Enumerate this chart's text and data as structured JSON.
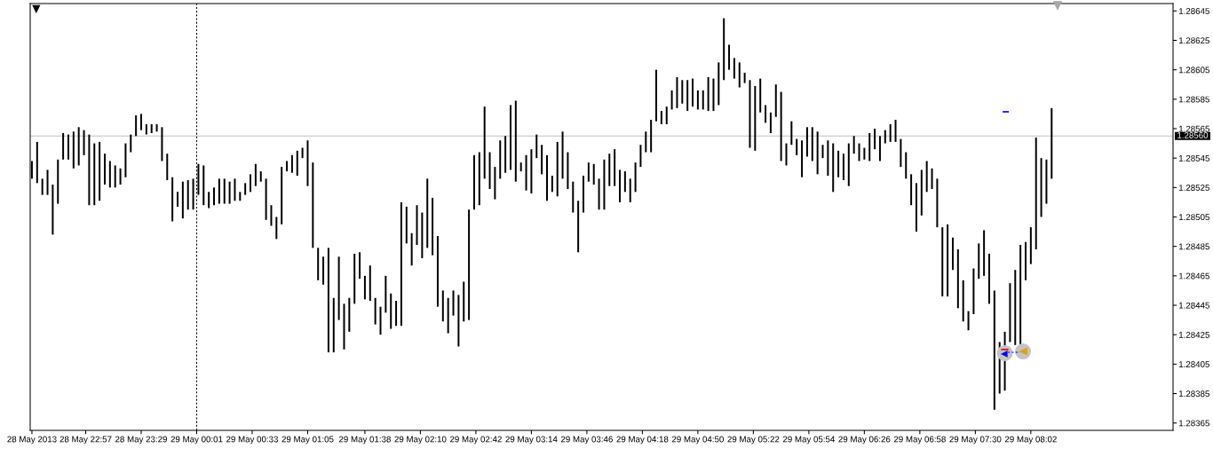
{
  "chart_data": {
    "type": "bar",
    "color": "#000000",
    "x": [
      "2013-05-28T22:26",
      "2013-05-28T22:29",
      "2013-05-28T22:32",
      "2013-05-28T22:35",
      "2013-05-28T22:38",
      "2013-05-28T22:41",
      "2013-05-28T22:44",
      "2013-05-28T22:47",
      "2013-05-28T22:50",
      "2013-05-28T22:53",
      "2013-05-28T22:56",
      "2013-05-28T22:59",
      "2013-05-28T23:02",
      "2013-05-28T23:05",
      "2013-05-28T23:08",
      "2013-05-28T23:11",
      "2013-05-28T23:14",
      "2013-05-28T23:17",
      "2013-05-28T23:20",
      "2013-05-28T23:23",
      "2013-05-28T23:26",
      "2013-05-28T23:29",
      "2013-05-28T23:32",
      "2013-05-28T23:35",
      "2013-05-28T23:38",
      "2013-05-28T23:41",
      "2013-05-28T23:44",
      "2013-05-28T23:47",
      "2013-05-28T23:50",
      "2013-05-28T23:53",
      "2013-05-28T23:56",
      "2013-05-28T23:59",
      "2013-05-29T00:02",
      "2013-05-29T00:05",
      "2013-05-29T00:08",
      "2013-05-29T00:11",
      "2013-05-29T00:14",
      "2013-05-29T00:17",
      "2013-05-29T00:20",
      "2013-05-29T00:23",
      "2013-05-29T00:26",
      "2013-05-29T00:29",
      "2013-05-29T00:32",
      "2013-05-29T00:35",
      "2013-05-29T00:38",
      "2013-05-29T00:41",
      "2013-05-29T00:44",
      "2013-05-29T00:47",
      "2013-05-29T00:50",
      "2013-05-29T00:53",
      "2013-05-29T00:56",
      "2013-05-29T00:59",
      "2013-05-29T01:02",
      "2013-05-29T01:05",
      "2013-05-29T01:08",
      "2013-05-29T01:11",
      "2013-05-29T01:14",
      "2013-05-29T01:17",
      "2013-05-29T01:20",
      "2013-05-29T01:23",
      "2013-05-29T01:26",
      "2013-05-29T01:29",
      "2013-05-29T01:32",
      "2013-05-29T01:35",
      "2013-05-29T01:38",
      "2013-05-29T01:41",
      "2013-05-29T01:44",
      "2013-05-29T01:47",
      "2013-05-29T01:50",
      "2013-05-29T01:53",
      "2013-05-29T01:56",
      "2013-05-29T01:59",
      "2013-05-29T02:02",
      "2013-05-29T02:05",
      "2013-05-29T02:08",
      "2013-05-29T02:11",
      "2013-05-29T02:14",
      "2013-05-29T02:17",
      "2013-05-29T02:20",
      "2013-05-29T02:23",
      "2013-05-29T02:26",
      "2013-05-29T02:29",
      "2013-05-29T02:32",
      "2013-05-29T02:35",
      "2013-05-29T02:38",
      "2013-05-29T02:41",
      "2013-05-29T02:44",
      "2013-05-29T02:47",
      "2013-05-29T02:50",
      "2013-05-29T02:53",
      "2013-05-29T02:56",
      "2013-05-29T02:59",
      "2013-05-29T03:02",
      "2013-05-29T03:05",
      "2013-05-29T03:08",
      "2013-05-29T03:11",
      "2013-05-29T03:14",
      "2013-05-29T03:17",
      "2013-05-29T03:20",
      "2013-05-29T03:23",
      "2013-05-29T03:26",
      "2013-05-29T03:29",
      "2013-05-29T03:32",
      "2013-05-29T03:35",
      "2013-05-29T03:38",
      "2013-05-29T03:41",
      "2013-05-29T03:44",
      "2013-05-29T03:47",
      "2013-05-29T03:50",
      "2013-05-29T03:53",
      "2013-05-29T03:56",
      "2013-05-29T03:59",
      "2013-05-29T04:02",
      "2013-05-29T04:05",
      "2013-05-29T04:08",
      "2013-05-29T04:11",
      "2013-05-29T04:14",
      "2013-05-29T04:17",
      "2013-05-29T04:20",
      "2013-05-29T04:23",
      "2013-05-29T04:26",
      "2013-05-29T04:29",
      "2013-05-29T04:32",
      "2013-05-29T04:35",
      "2013-05-29T04:38",
      "2013-05-29T04:41",
      "2013-05-29T04:44",
      "2013-05-29T04:47",
      "2013-05-29T04:50",
      "2013-05-29T04:53",
      "2013-05-29T04:56",
      "2013-05-29T04:59",
      "2013-05-29T05:02",
      "2013-05-29T05:05",
      "2013-05-29T05:08",
      "2013-05-29T05:11",
      "2013-05-29T05:14",
      "2013-05-29T05:17",
      "2013-05-29T05:20",
      "2013-05-29T05:23",
      "2013-05-29T05:26",
      "2013-05-29T05:29",
      "2013-05-29T05:32",
      "2013-05-29T05:35",
      "2013-05-29T05:38",
      "2013-05-29T05:41",
      "2013-05-29T05:44",
      "2013-05-29T05:47",
      "2013-05-29T05:50",
      "2013-05-29T05:53",
      "2013-05-29T05:56",
      "2013-05-29T05:59",
      "2013-05-29T06:02",
      "2013-05-29T06:05",
      "2013-05-29T06:08",
      "2013-05-29T06:11",
      "2013-05-29T06:14",
      "2013-05-29T06:17",
      "2013-05-29T06:20",
      "2013-05-29T06:23",
      "2013-05-29T06:26",
      "2013-05-29T06:29",
      "2013-05-29T06:32",
      "2013-05-29T06:35",
      "2013-05-29T06:38",
      "2013-05-29T06:41",
      "2013-05-29T06:44",
      "2013-05-29T06:47",
      "2013-05-29T06:50",
      "2013-05-29T06:53",
      "2013-05-29T06:56",
      "2013-05-29T06:59",
      "2013-05-29T07:02",
      "2013-05-29T07:05",
      "2013-05-29T07:08",
      "2013-05-29T07:11",
      "2013-05-29T07:14",
      "2013-05-29T07:17",
      "2013-05-29T07:20",
      "2013-05-29T07:23",
      "2013-05-29T07:26",
      "2013-05-29T07:29",
      "2013-05-29T07:32",
      "2013-05-29T07:35",
      "2013-05-29T07:38",
      "2013-05-29T07:41",
      "2013-05-29T07:44",
      "2013-05-29T07:47",
      "2013-05-29T07:50",
      "2013-05-29T07:53",
      "2013-05-29T07:56",
      "2013-05-29T07:59",
      "2013-05-29T08:02",
      "2013-05-29T08:05",
      "2013-05-29T08:08",
      "2013-05-29T08:11",
      "2013-05-29T08:14"
    ],
    "base": [
      1.28531,
      1.28528,
      1.2852,
      1.2852,
      1.28493,
      1.28514,
      1.28544,
      1.28544,
      1.28538,
      1.2854,
      1.28547,
      1.28513,
      1.28513,
      1.28516,
      1.28527,
      1.28525,
      1.28525,
      1.28527,
      1.28532,
      1.28549,
      1.2856,
      1.28564,
      1.28561,
      1.28562,
      1.28563,
      1.28543,
      1.2853,
      1.28502,
      1.28512,
      1.28504,
      1.2851,
      1.2851,
      1.2852,
      1.28513,
      1.28511,
      1.28513,
      1.28514,
      1.28514,
      1.28514,
      1.28516,
      1.28516,
      1.2852,
      1.28522,
      1.28526,
      1.28529,
      1.28503,
      1.28499,
      1.2849,
      1.285,
      1.28536,
      1.28535,
      1.28533,
      1.28545,
      1.28526,
      1.28484,
      1.28462,
      1.28459,
      1.28413,
      1.28413,
      1.28435,
      1.28415,
      1.28427,
      1.28446,
      1.28463,
      1.28449,
      1.28448,
      1.28432,
      1.28425,
      1.2844,
      1.28429,
      1.28431,
      1.28431,
      1.28487,
      1.28472,
      1.28486,
      1.28477,
      1.28484,
      1.28479,
      1.28444,
      1.28434,
      1.28426,
      1.28438,
      1.28417,
      1.28434,
      1.28435,
      1.2851,
      1.28513,
      1.28531,
      1.28524,
      1.28517,
      1.28531,
      1.28535,
      1.28537,
      1.28529,
      1.28536,
      1.28523,
      1.28521,
      1.28545,
      1.28534,
      1.28516,
      1.28522,
      1.28519,
      1.28531,
      1.28524,
      1.28508,
      1.28481,
      1.28508,
      1.28529,
      1.28527,
      1.2851,
      1.2851,
      1.28526,
      1.28526,
      1.28515,
      1.28522,
      1.28515,
      1.28522,
      1.28539,
      1.28549,
      1.28549,
      1.2857,
      1.28568,
      1.28568,
      1.28578,
      1.28579,
      1.28582,
      1.28577,
      1.2858,
      1.28578,
      1.28578,
      1.28577,
      1.28577,
      1.28581,
      1.28598,
      1.28605,
      1.28599,
      1.28593,
      1.28596,
      1.28552,
      1.2855,
      1.28576,
      1.28569,
      1.28562,
      1.28573,
      1.28543,
      1.2854,
      1.28554,
      1.28547,
      1.28532,
      1.28546,
      1.28543,
      1.28534,
      1.28545,
      1.28533,
      1.28522,
      1.28532,
      1.2853,
      1.28526,
      1.28548,
      1.28543,
      1.28544,
      1.28543,
      1.28551,
      1.28543,
      1.28555,
      1.28556,
      1.28556,
      1.28539,
      1.28531,
      1.28513,
      1.28495,
      1.28506,
      1.28522,
      1.28524,
      1.28498,
      1.28451,
      1.28451,
      1.28469,
      1.28443,
      1.28434,
      1.28428,
      1.28439,
      1.28463,
      1.28465,
      1.28446,
      1.28374,
      1.28385,
      1.28387,
      1.2842,
      1.28418,
      1.28409,
      1.28462,
      1.28473,
      1.28483,
      1.28505,
      1.28514,
      1.28531
    ],
    "values": [
      0.00012,
      0.00028,
      0.00011,
      0.00017,
      0.00034,
      0.0003,
      0.00018,
      0.00017,
      0.00025,
      0.00026,
      0.00017,
      0.00048,
      0.00042,
      0.0004,
      0.00021,
      0.00018,
      0.00015,
      0.00011,
      0.00023,
      0.00012,
      0.00014,
      0.00011,
      7e-05,
      6e-05,
      5e-05,
      0.00023,
      0.00018,
      0.0003,
      0.0001,
      0.00025,
      0.0002,
      0.00021,
      0.00021,
      0.00027,
      0.00011,
      0.00012,
      0.00017,
      0.00017,
      0.00015,
      0.00015,
      6e-05,
      8e-05,
      0.00012,
      0.00015,
      7e-05,
      0.00028,
      0.00014,
      0.00015,
      0.00039,
      7e-05,
      0.00012,
      0.00017,
      7e-05,
      0.00031,
      0.00058,
      0.00022,
      0.00019,
      0.00071,
      0.00037,
      0.00043,
      0.00031,
      0.00023,
      0.00034,
      0.00018,
      0.00016,
      0.00024,
      0.00018,
      0.00019,
      0.00025,
      0.00024,
      0.00017,
      0.00084,
      0.00025,
      0.00022,
      0.00027,
      0.00031,
      0.00047,
      0.00039,
      0.00048,
      0.00021,
      0.00024,
      0.00017,
      0.00035,
      0.00027,
      0.00075,
      0.00037,
      0.00036,
      0.00049,
      0.00025,
      0.00022,
      0.00026,
      0.00025,
      0.00044,
      0.00055,
      6e-05,
      0.00024,
      0.0003,
      0.00016,
      0.0002,
      0.00031,
      0.00011,
      0.00037,
      0.00032,
      0.00025,
      0.00021,
      0.00035,
      0.00025,
      0.00013,
      0.00014,
      0.00021,
      0.00034,
      0.00022,
      0.00025,
      0.00022,
      0.00014,
      0.00016,
      0.0002,
      0.00015,
      0.00014,
      0.00022,
      0.00035,
      9e-05,
      0.00012,
      0.00013,
      0.00021,
      0.00016,
      0.00021,
      0.00019,
      0.00013,
      0.00013,
      0.00023,
      0.00022,
      0.00029,
      0.00042,
      0.00017,
      0.00014,
      0.00017,
      7e-05,
      0.00046,
      0.00044,
      0.00023,
      0.00012,
      0.00014,
      0.00022,
      0.00047,
      0.00015,
      0.00016,
      0.00011,
      0.00025,
      0.0002,
      0.00023,
      0.00029,
      9e-05,
      0.00024,
      0.00033,
      0.00018,
      0.00018,
      0.00029,
      0.00012,
      0.00012,
      8e-05,
      0.00019,
      0.00014,
      0.00017,
      9e-05,
      0.00012,
      0.00015,
      0.00019,
      0.00018,
      0.00021,
      0.00033,
      0.00031,
      0.00021,
      0.00014,
      0.00033,
      0.00047,
      0.00049,
      0.00022,
      0.0004,
      0.00028,
      0.00013,
      0.00031,
      0.00024,
      0.00031,
      0.00034,
      0.00081,
      0.00035,
      0.0004,
      0.0004,
      0.00051,
      0.00077,
      0.00026,
      0.00025,
      0.00076,
      0.0004,
      0.0003,
      0.00048
    ],
    "xlim": [
      "2013-05-28T22:25",
      "2013-05-29T09:24"
    ],
    "xticks": [
      {
        "value": "2013-05-28T22:26",
        "label": "28 May 2013"
      },
      {
        "value": "2013-05-28T22:57",
        "label": "28 May 22:57"
      },
      {
        "value": "2013-05-28T23:29",
        "label": "28 May 23:29"
      },
      {
        "value": "2013-05-29T00:01",
        "label": "29 May 00:01"
      },
      {
        "value": "2013-05-29T00:33",
        "label": "29 May 00:33"
      },
      {
        "value": "2013-05-29T01:05",
        "label": "29 May 01:05"
      },
      {
        "value": "2013-05-29T01:38",
        "label": "29 May 01:38"
      },
      {
        "value": "2013-05-29T02:10",
        "label": "29 May 02:10"
      },
      {
        "value": "2013-05-29T02:42",
        "label": "29 May 02:42"
      },
      {
        "value": "2013-05-29T03:14",
        "label": "29 May 03:14"
      },
      {
        "value": "2013-05-29T03:46",
        "label": "29 May 03:46"
      },
      {
        "value": "2013-05-29T04:18",
        "label": "29 May 04:18"
      },
      {
        "value": "2013-05-29T04:50",
        "label": "29 May 04:50"
      },
      {
        "value": "2013-05-29T05:22",
        "label": "29 May 05:22"
      },
      {
        "value": "2013-05-29T05:54",
        "label": "29 May 05:54"
      },
      {
        "value": "2013-05-29T06:26",
        "label": "29 May 06:26"
      },
      {
        "value": "2013-05-29T06:58",
        "label": "29 May 06:58"
      },
      {
        "value": "2013-05-29T07:30",
        "label": "29 May 07:30"
      },
      {
        "value": "2013-05-29T08:02",
        "label": "29 May 08:02"
      }
    ],
    "ylim": [
      1.2836,
      1.2865
    ],
    "yticks": [
      1.28365,
      1.28385,
      1.28405,
      1.28425,
      1.28445,
      1.28465,
      1.28485,
      1.28505,
      1.28525,
      1.28545,
      1.28565,
      1.28585,
      1.28605,
      1.28625,
      1.28645
    ],
    "ref_lines": [
      {
        "axis": "y",
        "value": 1.2856,
        "label": "1.28560",
        "color": "#c0c0c0"
      },
      {
        "axis": "x",
        "value": "2013-05-29T00:01",
        "color": "#000000",
        "line_style": "dotted"
      }
    ]
  }
}
